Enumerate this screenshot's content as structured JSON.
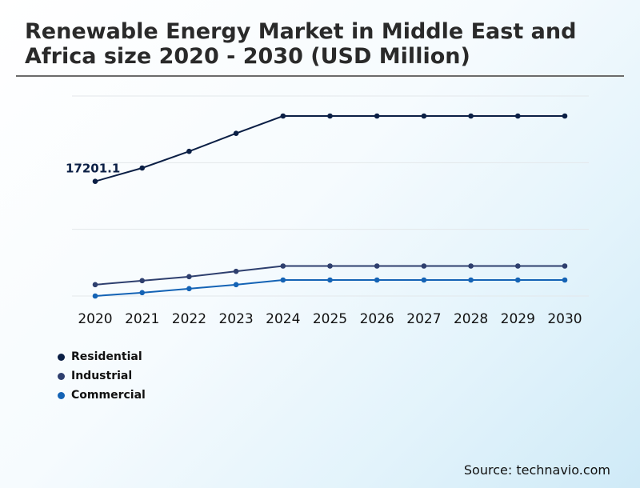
{
  "chart_data": {
    "type": "line",
    "title": "Renewable Energy Market in Middle East and Africa size 2020 - 2030 (USD Million)",
    "xlabel": "",
    "ylabel": "",
    "categories": [
      "2020",
      "2021",
      "2022",
      "2023",
      "2024",
      "2025",
      "2026",
      "2027",
      "2028",
      "2029",
      "2030"
    ],
    "ylim": [
      0,
      30000
    ],
    "series": [
      {
        "name": "Residential",
        "color": "#0b1f45",
        "values": [
          17201.1,
          19200,
          21700,
          24400,
          27000,
          27000,
          27000,
          27000,
          27000,
          27000,
          27000
        ]
      },
      {
        "name": "Industrial",
        "color": "#2e3f6e",
        "values": [
          1700,
          2300,
          2900,
          3700,
          4500,
          4500,
          4500,
          4500,
          4500,
          4500,
          4500
        ]
      },
      {
        "name": "Commercial",
        "color": "#1463b5",
        "values": [
          0,
          500,
          1100,
          1700,
          2400,
          2400,
          2400,
          2400,
          2400,
          2400,
          2400
        ]
      }
    ],
    "annotations": [
      {
        "series": "Residential",
        "category": "2020",
        "label": "17201.1"
      }
    ],
    "legend_position": "bottom-left",
    "grid": true
  },
  "source": "Source: technavio.com"
}
